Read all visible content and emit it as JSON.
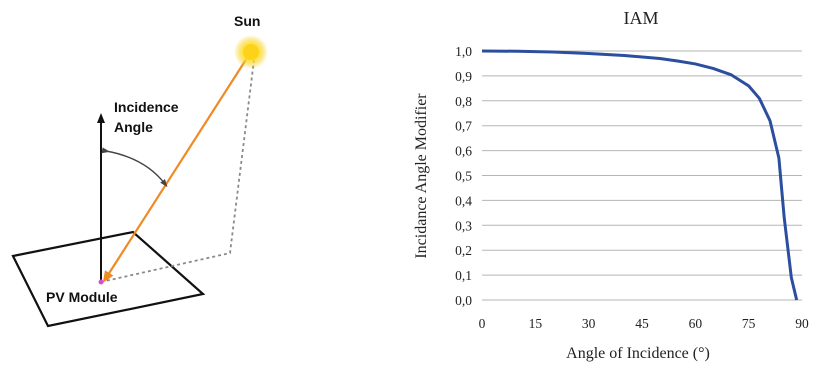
{
  "diagram": {
    "sun_label": "Sun",
    "angle_label_line1": "Incidence",
    "angle_label_line2": "Angle",
    "module_label": "PV Module",
    "sun_color": "#f5c400",
    "ray_color": "#f08a24",
    "icons": [
      "sun-icon",
      "pv-module-panel",
      "normal-vector-arrow",
      "sun-ray-arrow",
      "projection-dotted-line",
      "incidence-angle-arc"
    ]
  },
  "chart_data": {
    "type": "line",
    "title": "IAM",
    "xlabel": "Angle of Incidence (°)",
    "ylabel": "Incidance Angle Modifier",
    "xlim": [
      0,
      90
    ],
    "ylim": [
      0,
      1
    ],
    "grid": true,
    "x_ticks": [
      "0",
      "15",
      "30",
      "45",
      "60",
      "75",
      "90"
    ],
    "y_ticks": [
      "0,0",
      "0,1",
      "0,2",
      "0,3",
      "0,4",
      "0,5",
      "0,6",
      "0,7",
      "0,8",
      "0,9",
      "1,0"
    ],
    "series": [
      {
        "color": "#2b4f9e",
        "x": [
          0,
          10,
          20,
          30,
          40,
          50,
          55,
          60,
          65,
          70,
          75,
          78,
          81,
          83.5,
          85,
          87,
          88.5
        ],
        "y": [
          1.0,
          0.999,
          0.996,
          0.99,
          0.982,
          0.97,
          0.96,
          0.948,
          0.93,
          0.905,
          0.86,
          0.81,
          0.72,
          0.57,
          0.33,
          0.09,
          0.0
        ]
      }
    ]
  }
}
